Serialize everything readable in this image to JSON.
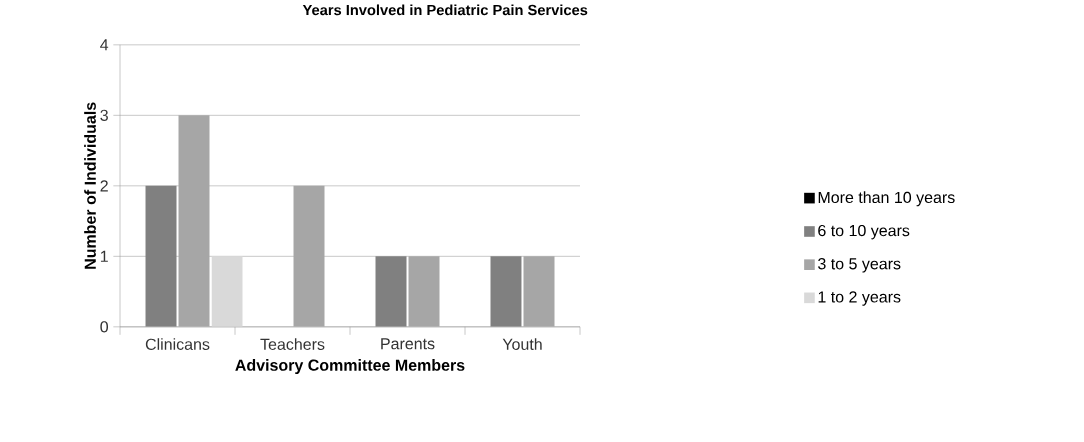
{
  "chart_data": {
    "type": "bar",
    "title": "Years Involved in Pediatric Pain Services",
    "xlabel": "Advisory Committee Members",
    "ylabel": "Number of Individuals",
    "categories": [
      "Clinicans",
      "Teachers",
      "Parents",
      "Youth"
    ],
    "series": [
      {
        "name": "More than 10 years",
        "color": "#000000",
        "values": [
          0,
          0,
          0,
          0
        ]
      },
      {
        "name": "6 to 10 years",
        "color": "#808080",
        "values": [
          2,
          0,
          1,
          1
        ]
      },
      {
        "name": "3 to 5 years",
        "color": "#a6a6a6",
        "values": [
          3,
          2,
          1,
          1
        ]
      },
      {
        "name": "1 to 2 years",
        "color": "#d9d9d9",
        "values": [
          1,
          0,
          0,
          0
        ]
      }
    ],
    "ylim": [
      0,
      4
    ],
    "yticks": [
      0,
      1,
      2,
      3,
      4
    ],
    "grid": "y",
    "legend": "right"
  }
}
